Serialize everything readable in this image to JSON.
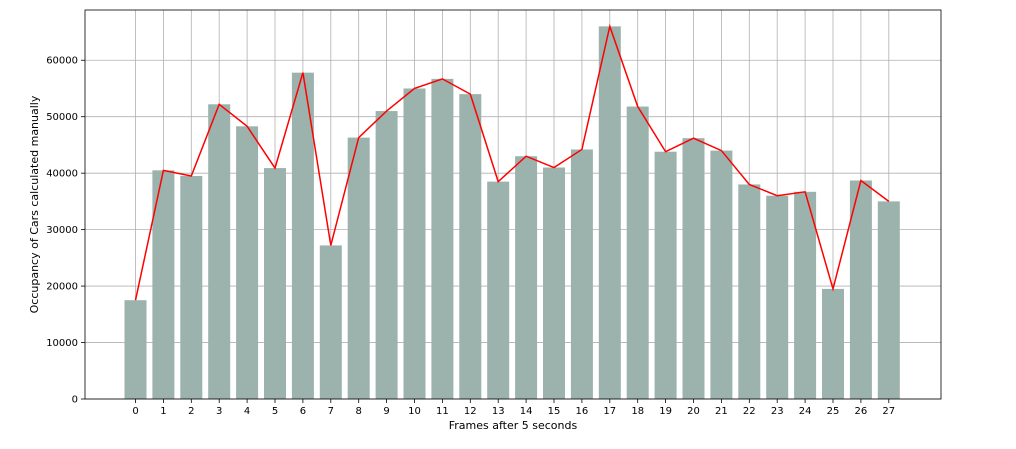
{
  "chart_data": {
    "type": "bar",
    "categories": [
      "0",
      "1",
      "2",
      "3",
      "4",
      "5",
      "6",
      "7",
      "8",
      "9",
      "10",
      "11",
      "12",
      "13",
      "14",
      "15",
      "16",
      "17",
      "18",
      "19",
      "20",
      "21",
      "22",
      "23",
      "24",
      "25",
      "26",
      "27"
    ],
    "values": [
      17500,
      40500,
      39500,
      52200,
      48300,
      40900,
      57800,
      27200,
      46300,
      51000,
      55000,
      56700,
      54000,
      38500,
      43000,
      41000,
      44200,
      66000,
      51800,
      43800,
      46200,
      44000,
      38000,
      36000,
      36700,
      19500,
      38700,
      35000
    ],
    "overlay_line": {
      "type": "line",
      "values": [
        17500,
        40500,
        39500,
        52200,
        48300,
        40900,
        57800,
        27200,
        46300,
        51000,
        55000,
        56700,
        54000,
        38500,
        43000,
        41000,
        44200,
        66000,
        51800,
        43800,
        46200,
        44000,
        38000,
        36000,
        36700,
        19500,
        38700,
        35000
      ],
      "color": "#ff0000"
    },
    "xlabel": "Frames after 5 seconds",
    "ylabel": "Occupancy of Cars calculated manually",
    "ylim": [
      0,
      68900
    ],
    "yticks": [
      0,
      10000,
      20000,
      30000,
      40000,
      50000,
      60000
    ],
    "bar_color": "#9bb2ad",
    "grid": true
  }
}
